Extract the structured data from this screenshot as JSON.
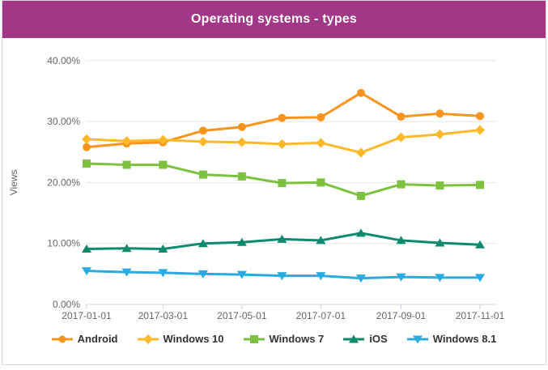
{
  "title": "Operating systems - types",
  "colors": {
    "header_bg": "#a23788",
    "title_text": "#ffffff",
    "grid_line": "#e6e6e6",
    "axis_line": "#ccd6eb",
    "tick_text": "#666666",
    "legend_text": "#333333",
    "widget_border": "#d9d9d9"
  },
  "chart_data": {
    "type": "line",
    "x": [
      "2017-01-01",
      "2017-02-01",
      "2017-03-01",
      "2017-04-01",
      "2017-05-01",
      "2017-06-01",
      "2017-07-01",
      "2017-08-01",
      "2017-09-01",
      "2017-10-01",
      "2017-11-01"
    ],
    "x_tick_labels": [
      "2017-01-01",
      "2017-03-01",
      "2017-05-01",
      "2017-07-01",
      "2017-09-01",
      "2017-11-01"
    ],
    "y_tick_labels": [
      "0.00%",
      "10.00%",
      "20.00%",
      "30.00%",
      "40.00%"
    ],
    "ylim": [
      0,
      40
    ],
    "ylabel": "Views",
    "grid": true,
    "legend_position": "bottom",
    "series": [
      {
        "name": "Android",
        "color": "#f7941e",
        "marker": "circle",
        "values": [
          25.8,
          26.4,
          26.6,
          28.5,
          29.1,
          30.6,
          30.7,
          34.7,
          30.8,
          31.3,
          30.9
        ]
      },
      {
        "name": "Windows 10",
        "color": "#fdb92a",
        "marker": "diamond",
        "values": [
          27.1,
          26.8,
          27.0,
          26.7,
          26.6,
          26.3,
          26.5,
          24.9,
          27.4,
          27.9,
          28.6
        ]
      },
      {
        "name": "Windows 7",
        "color": "#7dc140",
        "marker": "square",
        "values": [
          23.1,
          22.9,
          22.9,
          21.3,
          21.0,
          19.9,
          20.0,
          17.8,
          19.7,
          19.5,
          19.6
        ]
      },
      {
        "name": "iOS",
        "color": "#0e8a6e",
        "marker": "triangle-up",
        "values": [
          9.1,
          9.2,
          9.1,
          10.0,
          10.2,
          10.7,
          10.5,
          11.7,
          10.5,
          10.1,
          9.8
        ]
      },
      {
        "name": "Windows 8.1",
        "color": "#29abe2",
        "marker": "triangle-down",
        "values": [
          5.5,
          5.3,
          5.2,
          5.0,
          4.9,
          4.7,
          4.7,
          4.3,
          4.5,
          4.4,
          4.4
        ]
      }
    ]
  }
}
